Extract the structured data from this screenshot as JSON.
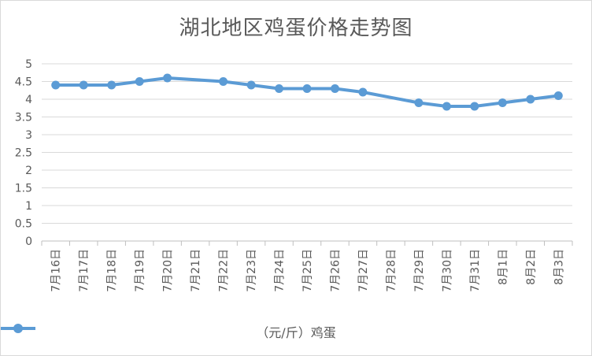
{
  "chart_data": {
    "type": "line",
    "title": "湖北地区鸡蛋价格走势图",
    "categories": [
      "7月16日",
      "7月17日",
      "7月18日",
      "7月19日",
      "7月20日",
      "7月21日",
      "7月22日",
      "7月23日",
      "7月24日",
      "7月25日",
      "7月26日",
      "7月27日",
      "7月28日",
      "7月29日",
      "7月30日",
      "7月31日",
      "8月1日",
      "8月2日",
      "8月3日"
    ],
    "series": [
      {
        "name": "（元/斤）鸡蛋",
        "color": "#5b9bd5",
        "values": [
          4.4,
          4.4,
          4.4,
          4.5,
          4.6,
          null,
          4.5,
          4.4,
          4.3,
          4.3,
          4.3,
          4.2,
          null,
          3.9,
          3.8,
          3.8,
          3.9,
          4.0,
          4.1
        ]
      }
    ],
    "ylim": [
      0,
      5
    ],
    "yticks": [
      "0",
      "0.5",
      "1",
      "1.5",
      "2",
      "2.5",
      "3",
      "3.5",
      "4",
      "4.5",
      "5"
    ],
    "grid": true,
    "legend_position": "bottom"
  }
}
